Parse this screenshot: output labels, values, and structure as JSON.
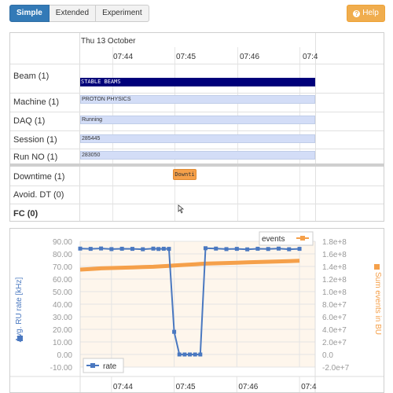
{
  "tabs": [
    {
      "label": "Simple",
      "active": true
    },
    {
      "label": "Extended",
      "active": false
    },
    {
      "label": "Experiment",
      "active": false
    }
  ],
  "help": {
    "label": "Help",
    "icon": "question-circle-icon"
  },
  "timeline": {
    "date": "Thu 13 October",
    "ticks": [
      "07:44",
      "07:45",
      "07:46",
      "07:4"
    ],
    "rows": [
      {
        "label": "Beam (1)",
        "bar": "STABLE BEAMS"
      },
      {
        "label": "Machine (1)",
        "bar": "PROTON PHYSICS"
      },
      {
        "label": "DAQ (1)",
        "bar": "Running"
      },
      {
        "label": "Session (1)",
        "bar": "285445"
      },
      {
        "label": "Run NO (1)",
        "bar": "283050"
      },
      {
        "label": "Downtime (1)",
        "bar": "Downti"
      },
      {
        "label": "Avoid. DT (0)",
        "bar": ""
      },
      {
        "label": "FC (0)",
        "bar": ""
      }
    ]
  },
  "chart_data": {
    "type": "line",
    "x": [
      "07:43:30",
      "07:43:40",
      "07:43:50",
      "07:44:00",
      "07:44:10",
      "07:44:20",
      "07:44:30",
      "07:44:40",
      "07:44:45",
      "07:44:50",
      "07:44:55",
      "07:45:00",
      "07:45:05",
      "07:45:10",
      "07:45:15",
      "07:45:20",
      "07:45:25",
      "07:45:30",
      "07:45:40",
      "07:45:50",
      "07:46:00",
      "07:46:10",
      "07:46:20",
      "07:46:30",
      "07:46:40",
      "07:46:50",
      "07:47:00"
    ],
    "x_ticks": [
      "07:44",
      "07:45",
      "07:46",
      "07:4"
    ],
    "series": [
      {
        "name": "rate",
        "axis": "left",
        "color": "#4a78c0",
        "values": [
          84.2,
          84.0,
          84.3,
          83.8,
          84.1,
          84.0,
          83.7,
          84.2,
          83.9,
          84.1,
          84.0,
          18.0,
          0.0,
          0.0,
          0.0,
          0.0,
          0.0,
          84.5,
          84.2,
          83.8,
          84.0,
          83.6,
          84.1,
          83.9,
          84.2,
          83.7,
          84.0
        ]
      },
      {
        "name": "events",
        "axis": "right",
        "color": "#f5a04a",
        "values": [
          135000000.0,
          136000000.0,
          137000000.0,
          137500000.0,
          138000000.0,
          138500000.0,
          139000000.0,
          139500000.0,
          140000000.0,
          140500000.0,
          141000000.0,
          141500000.0,
          142000000.0,
          142500000.0,
          143000000.0,
          143500000.0,
          144000000.0,
          144500000.0,
          145000000.0,
          145500000.0,
          146000000.0,
          146500000.0,
          147000000.0,
          147500000.0,
          148000000.0,
          148500000.0,
          149000000.0
        ]
      }
    ],
    "y_left": {
      "label": "Avg. RU rate [kHz]",
      "ylim": [
        -10,
        90
      ],
      "ticks": [
        "90.00",
        "80.00",
        "70.00",
        "60.00",
        "50.00",
        "40.00",
        "30.00",
        "20.00",
        "10.00",
        "0.00",
        "-10.00"
      ]
    },
    "y_right": {
      "label": "Sum events in BU",
      "ylim": [
        -20000000.0,
        180000000.0
      ],
      "ticks": [
        "1.8e+8",
        "1.6e+8",
        "1.4e+8",
        "1.2e+8",
        "1.0e+8",
        "8.0e+7",
        "6.0e+7",
        "4.0e+7",
        "2.0e+7",
        "0.0",
        "-2.0e+7"
      ]
    },
    "legend": {
      "events": "events",
      "rate": "rate"
    },
    "grid": true
  }
}
